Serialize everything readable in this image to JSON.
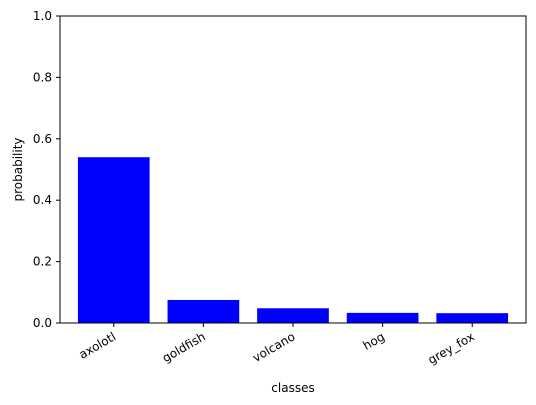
{
  "chart_data": {
    "type": "bar",
    "title": "",
    "xlabel": "classes",
    "ylabel": "probability",
    "categories": [
      "axolotl",
      "goldfish",
      "volcano",
      "hog",
      "grey_fox"
    ],
    "values": [
      0.54,
      0.075,
      0.048,
      0.033,
      0.032
    ],
    "ylim": [
      0,
      1.0
    ],
    "yticks": [
      0.0,
      0.2,
      0.4,
      0.6,
      0.8,
      1.0
    ],
    "ytick_labels": [
      "0.0",
      "0.2",
      "0.4",
      "0.6",
      "0.8",
      "1.0"
    ],
    "bar_color": "#0000ff",
    "grid": false,
    "legend": "none"
  }
}
